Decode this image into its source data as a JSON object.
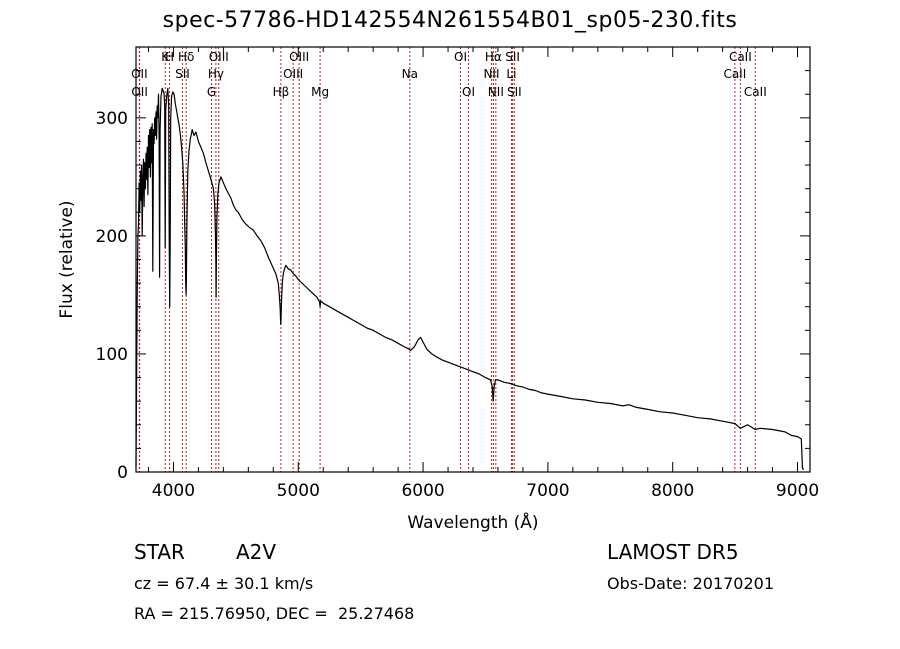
{
  "header": {
    "title": "spec-57786-HD142554N261554B01_sp05-230.fits"
  },
  "info": {
    "class": "STAR",
    "subclass": "A2V",
    "survey": "LAMOST DR5",
    "cz": "cz = 67.4 ± 30.1 km/s",
    "obs_date": "Obs-Date: 20170201",
    "coords": "RA = 215.76950, DEC =  25.27468"
  },
  "chart_data": {
    "type": "line",
    "title": "spec-57786-HD142554N261554B01_sp05-230.fits",
    "xlabel": "Wavelength (Å)",
    "ylabel": "Flux (relative)",
    "xlim": [
      3700,
      9100
    ],
    "ylim": [
      0,
      360
    ],
    "xticks": [
      4000,
      5000,
      6000,
      7000,
      8000,
      9000
    ],
    "yticks": [
      0,
      100,
      200,
      300
    ],
    "grid": false,
    "line_color": "#000000",
    "marker_color": "#b22222",
    "series": [
      {
        "values": [
          [
            3700,
            5
          ],
          [
            3705,
            80
          ],
          [
            3710,
            150
          ],
          [
            3715,
            200
          ],
          [
            3720,
            210
          ],
          [
            3725,
            245
          ],
          [
            3730,
            220
          ],
          [
            3735,
            255
          ],
          [
            3740,
            230
          ],
          [
            3745,
            260
          ],
          [
            3750,
            200
          ],
          [
            3755,
            250
          ],
          [
            3760,
            265
          ],
          [
            3765,
            225
          ],
          [
            3770,
            262
          ],
          [
            3775,
            240
          ],
          [
            3780,
            270
          ],
          [
            3785,
            248
          ],
          [
            3790,
            275
          ],
          [
            3795,
            235
          ],
          [
            3800,
            285
          ],
          [
            3805,
            258
          ],
          [
            3810,
            290
          ],
          [
            3815,
            250
          ],
          [
            3820,
            292
          ],
          [
            3825,
            262
          ],
          [
            3830,
            295
          ],
          [
            3835,
            170
          ],
          [
            3840,
            290
          ],
          [
            3845,
            278
          ],
          [
            3850,
            300
          ],
          [
            3855,
            285
          ],
          [
            3860,
            305
          ],
          [
            3865,
            282
          ],
          [
            3870,
            310
          ],
          [
            3875,
            300
          ],
          [
            3880,
            320
          ],
          [
            3885,
            285
          ],
          [
            3889,
            165
          ],
          [
            3893,
            290
          ],
          [
            3900,
            318
          ],
          [
            3910,
            325
          ],
          [
            3920,
            322
          ],
          [
            3925,
            320
          ],
          [
            3930,
            310
          ],
          [
            3934,
            190
          ],
          [
            3938,
            305
          ],
          [
            3945,
            318
          ],
          [
            3955,
            325
          ],
          [
            3962,
            310
          ],
          [
            3966,
            200
          ],
          [
            3970,
            140
          ],
          [
            3974,
            195
          ],
          [
            3978,
            300
          ],
          [
            3985,
            318
          ],
          [
            3995,
            322
          ],
          [
            4005,
            320
          ],
          [
            4015,
            312
          ],
          [
            4025,
            306
          ],
          [
            4035,
            300
          ],
          [
            4045,
            294
          ],
          [
            4055,
            286
          ],
          [
            4065,
            275
          ],
          [
            4075,
            262
          ],
          [
            4085,
            235
          ],
          [
            4090,
            210
          ],
          [
            4095,
            190
          ],
          [
            4098,
            160
          ],
          [
            4101,
            150
          ],
          [
            4104,
            165
          ],
          [
            4108,
            210
          ],
          [
            4115,
            255
          ],
          [
            4125,
            272
          ],
          [
            4135,
            282
          ],
          [
            4150,
            290
          ],
          [
            4165,
            285
          ],
          [
            4180,
            288
          ],
          [
            4200,
            280
          ],
          [
            4220,
            275
          ],
          [
            4240,
            270
          ],
          [
            4260,
            262
          ],
          [
            4280,
            255
          ],
          [
            4300,
            248
          ],
          [
            4320,
            240
          ],
          [
            4330,
            228
          ],
          [
            4337,
            200
          ],
          [
            4340,
            175
          ],
          [
            4342,
            148
          ],
          [
            4344,
            180
          ],
          [
            4348,
            215
          ],
          [
            4355,
            235
          ],
          [
            4365,
            245
          ],
          [
            4380,
            250
          ],
          [
            4400,
            245
          ],
          [
            4420,
            240
          ],
          [
            4440,
            236
          ],
          [
            4460,
            232
          ],
          [
            4480,
            226
          ],
          [
            4500,
            222
          ],
          [
            4520,
            220
          ],
          [
            4550,
            214
          ],
          [
            4580,
            210
          ],
          [
            4610,
            207
          ],
          [
            4640,
            205
          ],
          [
            4670,
            200
          ],
          [
            4700,
            196
          ],
          [
            4730,
            190
          ],
          [
            4760,
            182
          ],
          [
            4790,
            175
          ],
          [
            4820,
            168
          ],
          [
            4840,
            160
          ],
          [
            4848,
            150
          ],
          [
            4855,
            138
          ],
          [
            4859,
            125
          ],
          [
            4862,
            128
          ],
          [
            4866,
            145
          ],
          [
            4872,
            160
          ],
          [
            4880,
            168
          ],
          [
            4890,
            172
          ],
          [
            4900,
            175
          ],
          [
            4920,
            172
          ],
          [
            4940,
            171
          ],
          [
            4960,
            168
          ],
          [
            4980,
            166
          ],
          [
            5000,
            163
          ],
          [
            5050,
            158
          ],
          [
            5100,
            153
          ],
          [
            5150,
            148
          ],
          [
            5170,
            144
          ],
          [
            5175,
            140
          ],
          [
            5180,
            145
          ],
          [
            5200,
            143
          ],
          [
            5250,
            140
          ],
          [
            5300,
            137
          ],
          [
            5350,
            134
          ],
          [
            5400,
            131
          ],
          [
            5450,
            128
          ],
          [
            5500,
            125
          ],
          [
            5550,
            122
          ],
          [
            5600,
            120
          ],
          [
            5650,
            117
          ],
          [
            5700,
            114
          ],
          [
            5750,
            112
          ],
          [
            5800,
            109
          ],
          [
            5850,
            106
          ],
          [
            5890,
            104
          ],
          [
            5900,
            103
          ],
          [
            5930,
            106
          ],
          [
            5960,
            112
          ],
          [
            5980,
            114
          ],
          [
            6000,
            110
          ],
          [
            6030,
            104
          ],
          [
            6070,
            100
          ],
          [
            6100,
            98
          ],
          [
            6150,
            95
          ],
          [
            6200,
            93
          ],
          [
            6250,
            91
          ],
          [
            6300,
            89
          ],
          [
            6350,
            87
          ],
          [
            6400,
            85
          ],
          [
            6450,
            83
          ],
          [
            6500,
            80
          ],
          [
            6540,
            78
          ],
          [
            6555,
            72
          ],
          [
            6562,
            60
          ],
          [
            6569,
            72
          ],
          [
            6580,
            78
          ],
          [
            6600,
            78
          ],
          [
            6650,
            76
          ],
          [
            6700,
            75
          ],
          [
            6750,
            73
          ],
          [
            6800,
            72
          ],
          [
            6850,
            70
          ],
          [
            6900,
            69
          ],
          [
            6950,
            67
          ],
          [
            7000,
            66
          ],
          [
            7100,
            64
          ],
          [
            7200,
            62
          ],
          [
            7300,
            61
          ],
          [
            7400,
            59
          ],
          [
            7500,
            58
          ],
          [
            7600,
            56
          ],
          [
            7650,
            57
          ],
          [
            7700,
            55
          ],
          [
            7800,
            53
          ],
          [
            7900,
            51
          ],
          [
            8000,
            50
          ],
          [
            8100,
            48
          ],
          [
            8200,
            46
          ],
          [
            8300,
            45
          ],
          [
            8400,
            43
          ],
          [
            8500,
            41
          ],
          [
            8542,
            37
          ],
          [
            8600,
            40
          ],
          [
            8662,
            36
          ],
          [
            8700,
            37
          ],
          [
            8800,
            36
          ],
          [
            8900,
            34
          ],
          [
            8950,
            31
          ],
          [
            9000,
            30
          ],
          [
            9030,
            28
          ],
          [
            9040,
            3
          ],
          [
            9050,
            2
          ]
        ]
      }
    ],
    "line_markers": [
      {
        "label": "Hδ",
        "wavelength": 4102,
        "row": 0
      },
      {
        "label": "Hγ",
        "wavelength": 4340,
        "row": 1
      },
      {
        "label": "Hβ",
        "wavelength": 4861,
        "row": 2
      },
      {
        "label": "Hα",
        "wavelength": 6563,
        "row": 0
      },
      {
        "label": "K",
        "wavelength": 3934,
        "row": 0
      },
      {
        "label": "H",
        "wavelength": 3969,
        "row": 0
      },
      {
        "label": "G",
        "wavelength": 4305,
        "row": 2
      },
      {
        "label": "Mg",
        "wavelength": 5175,
        "row": 2
      },
      {
        "label": "Na",
        "wavelength": 5894,
        "row": 1
      },
      {
        "label": "OII",
        "wavelength": 3727,
        "row": 1
      },
      {
        "label": "OII",
        "wavelength": 3729,
        "row": 2
      },
      {
        "label": "SII",
        "wavelength": 4072,
        "row": 1
      },
      {
        "label": "OIII",
        "wavelength": 4363,
        "row": 0
      },
      {
        "label": "OIII",
        "wavelength": 4959,
        "row": 1
      },
      {
        "label": "OIII",
        "wavelength": 5007,
        "row": 0
      },
      {
        "label": "OI",
        "wavelength": 6300,
        "row": 0
      },
      {
        "label": "OI",
        "wavelength": 6364,
        "row": 2
      },
      {
        "label": "NII",
        "wavelength": 6548,
        "row": 1
      },
      {
        "label": "NII",
        "wavelength": 6583,
        "row": 2
      },
      {
        "label": "Li",
        "wavelength": 6708,
        "row": 1
      },
      {
        "label": "SII",
        "wavelength": 6717,
        "row": 0
      },
      {
        "label": "SII",
        "wavelength": 6731,
        "row": 2
      },
      {
        "label": "CaII",
        "wavelength": 8498,
        "row": 1
      },
      {
        "label": "CaII",
        "wavelength": 8542,
        "row": 0
      },
      {
        "label": "CaII",
        "wavelength": 8662,
        "row": 2
      }
    ]
  }
}
